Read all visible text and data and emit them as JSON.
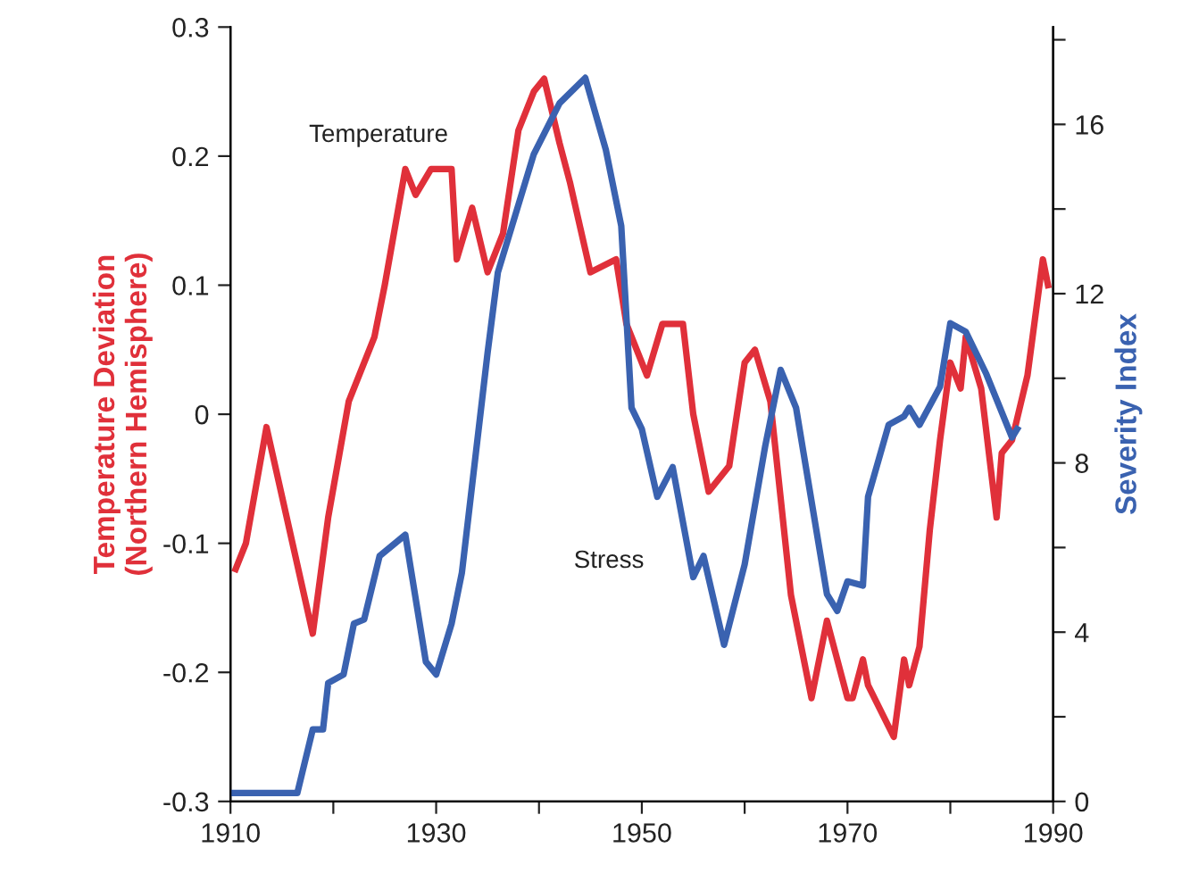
{
  "chart_data": {
    "type": "line",
    "ylabel": "Temperature Deviation\n(Northern Hemisphere)",
    "y2label": "Severity Index",
    "xlim": [
      1910,
      1990
    ],
    "xticks": [
      1910,
      {
        "value": 1920,
        "label": null
      },
      1930,
      {
        "value": 1940,
        "label": null
      },
      1950,
      {
        "value": 1960,
        "label": null
      },
      1970,
      {
        "value": 1980,
        "label": null
      },
      1990
    ],
    "ylim": [
      -0.3,
      0.3
    ],
    "yticks": [
      -0.3,
      -0.2,
      -0.1,
      0,
      0.1,
      0.2,
      0.3
    ],
    "y2lim": [
      0,
      18.3
    ],
    "y2ticks": [
      0,
      {
        "value": 2,
        "label": null
      },
      4,
      {
        "value": 6,
        "label": null
      },
      8,
      {
        "value": 10,
        "label": null
      },
      12,
      {
        "value": 14,
        "label": null
      },
      16,
      {
        "value": 18,
        "label": null
      }
    ],
    "grid": false,
    "legend": false,
    "marker": "none",
    "line_style": "solid",
    "series": [
      {
        "name": "Temperature",
        "color": "#e0303a",
        "x": [
          1910.5,
          1911.5,
          1913.5,
          1918,
          1919.5,
          1921.5,
          1924,
          1925,
          1927,
          1928,
          1929.5,
          1931.5,
          1932,
          1933.5,
          1935,
          1936.5,
          1938,
          1939.5,
          1940.5,
          1942,
          1943,
          1945,
          1947.5,
          1948.5,
          1950.5,
          1952,
          1954,
          1955,
          1956.5,
          1958.5,
          1960,
          1961,
          1962.5,
          1964.5,
          1966.5,
          1968,
          1970,
          1970.5,
          1971.5,
          1972,
          1974.5,
          1975.5,
          1976,
          1977,
          1978,
          1979,
          1980,
          1981,
          1981.5,
          1983,
          1984.5,
          1985,
          1986,
          1987.5,
          1989,
          1989.5
        ],
        "values": [
          -0.12,
          -0.1,
          -0.01,
          -0.17,
          -0.08,
          0.01,
          0.06,
          0.1,
          0.19,
          0.17,
          0.19,
          0.19,
          0.12,
          0.16,
          0.11,
          0.14,
          0.22,
          0.25,
          0.26,
          0.21,
          0.18,
          0.11,
          0.12,
          0.07,
          0.03,
          0.07,
          0.07,
          0.0,
          -0.06,
          -0.04,
          0.04,
          0.05,
          0.01,
          -0.14,
          -0.22,
          -0.16,
          -0.22,
          -0.22,
          -0.19,
          -0.21,
          -0.25,
          -0.19,
          -0.21,
          -0.18,
          -0.09,
          -0.02,
          0.04,
          0.02,
          0.06,
          0.02,
          -0.08,
          -0.03,
          -0.02,
          0.03,
          0.12,
          0.1
        ]
      },
      {
        "name": "Stress",
        "color": "#3a62b0",
        "axis": "y2",
        "x": [
          1910,
          1916.5,
          1918,
          1919,
          1919.5,
          1921,
          1922,
          1923,
          1924.5,
          1927,
          1929,
          1930,
          1931.5,
          1932.5,
          1935,
          1936,
          1939.5,
          1942,
          1944.5,
          1946.5,
          1948,
          1949,
          1950,
          1951.5,
          1953,
          1955,
          1956,
          1958,
          1960,
          1962,
          1963.5,
          1965,
          1968,
          1969,
          1970,
          1971.5,
          1972,
          1974,
          1975.5,
          1976,
          1977,
          1979,
          1980,
          1981.5,
          1983.5,
          1986,
          1986.5
        ],
        "values": [
          0.2,
          0.2,
          1.7,
          1.7,
          2.8,
          3.0,
          4.2,
          4.3,
          5.8,
          6.3,
          3.3,
          3.0,
          4.2,
          5.4,
          10.6,
          12.5,
          15.3,
          16.5,
          17.1,
          15.4,
          13.6,
          9.3,
          8.8,
          7.2,
          7.9,
          5.3,
          5.8,
          3.7,
          5.6,
          8.4,
          10.2,
          9.3,
          4.9,
          4.5,
          5.2,
          5.1,
          7.2,
          8.9,
          9.1,
          9.3,
          8.9,
          9.8,
          11.3,
          11.1,
          10.1,
          8.6,
          8.8
        ]
      }
    ]
  }
}
